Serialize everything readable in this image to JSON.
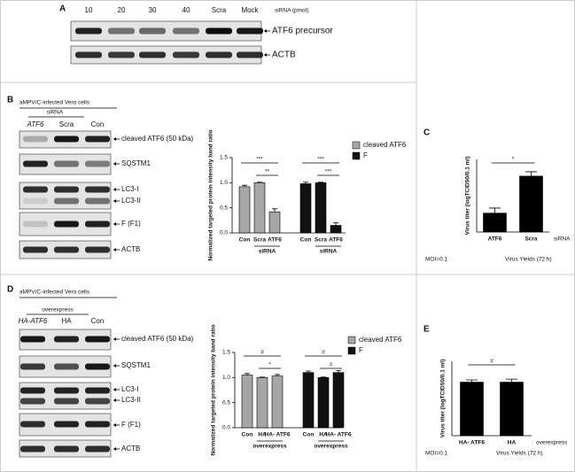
{
  "panel_a": {
    "label": "A",
    "lanes": [
      "10",
      "20",
      "30",
      "40",
      "Scra",
      "Mock"
    ],
    "lane_title": "siRNA (pmol)",
    "bands": [
      "ATF6 precursor",
      "ACTB"
    ]
  },
  "panel_b": {
    "label": "B",
    "cells": "aMPV/C-infected Vero cells",
    "treatment": "siRNA",
    "lanes": [
      "ATF6",
      "Scra",
      "Con"
    ],
    "bands": [
      "cleaved ATF6 (50 kDa)",
      "SQSTM1",
      "LC3-I",
      "LC3-II",
      "F (F1)",
      "ACTB"
    ]
  },
  "panel_d": {
    "label": "D",
    "cells": "aMPV/C-infected Vero cells",
    "treatment": "overexpress",
    "lanes": [
      "HA-ATF6",
      "HA",
      "Con"
    ],
    "bands": [
      "cleaved ATF6 (50 kDa)",
      "SQSTM1",
      "LC3-I",
      "LC3-II",
      "F (F1)",
      "ACTB"
    ]
  },
  "chart_data": [
    {
      "type": "bar",
      "categories": [
        "Con",
        "Scra",
        "ATF6"
      ],
      "group_label": "siRNA",
      "series": [
        {
          "name": "cleaved ATF6",
          "color": "#a6a6a6",
          "values": [
            0.92,
            1.0,
            0.42
          ],
          "errors": [
            0.03,
            0.01,
            0.06
          ]
        },
        {
          "name": "F",
          "color": "#111111",
          "values": [
            0.98,
            1.0,
            0.15
          ],
          "errors": [
            0.03,
            0.01,
            0.05
          ]
        }
      ],
      "y_label": "Normalized targeted protein intensity band ratio",
      "ylim": [
        0,
        1.5
      ],
      "yticks": [
        {
          "value": 0,
          "label": "0.0"
        },
        0.5,
        {
          "value": 1,
          "label": "1.0"
        },
        1.5
      ],
      "annotations": [
        "***",
        "**",
        "***",
        "***"
      ]
    },
    {
      "type": "bar",
      "panel": "C",
      "categories": [
        "ATF6",
        "Scra"
      ],
      "values": [
        1.3,
        3.85
      ],
      "errors": [
        0.35,
        0.3
      ],
      "color": "#000000",
      "x_title": "siRNA",
      "y_label": "Virus titer (logTCID50/0.1 ml)",
      "ylim": [
        0,
        5
      ],
      "annotations": [
        "*"
      ],
      "notes": [
        "MOI=0.1",
        "Virus Yields (72 h)"
      ]
    },
    {
      "type": "bar",
      "categories": [
        "Con",
        "HA",
        "HA- ATF6"
      ],
      "group_label": "overexpress",
      "series": [
        {
          "name": "cleaved ATF6",
          "color": "#a6a6a6",
          "values": [
            1.05,
            1.0,
            1.03
          ],
          "errors": [
            0.03,
            0.01,
            0.03
          ]
        },
        {
          "name": "F",
          "color": "#111111",
          "values": [
            1.1,
            1.0,
            1.1
          ],
          "errors": [
            0.03,
            0.01,
            0.04
          ]
        }
      ],
      "y_label": "Normalized targeted protein intensity band ratio",
      "ylim": [
        0,
        1.5
      ],
      "yticks": [
        {
          "value": 0,
          "label": "0.0"
        },
        0.5,
        {
          "value": 1,
          "label": "1.0"
        },
        1.5
      ],
      "annotations": [
        "#",
        "*",
        "#",
        "#"
      ]
    },
    {
      "type": "bar",
      "panel": "E",
      "categories": [
        "HA- ATF6",
        "HA"
      ],
      "values": [
        3.6,
        3.6
      ],
      "errors": [
        0.15,
        0.2
      ],
      "color": "#000000",
      "x_title": "overexpress",
      "y_label": "Virus titer (logTCID50/0.1 ml)",
      "ylim": [
        0,
        5
      ],
      "annotations": [
        "#"
      ],
      "notes": [
        "MOI=0.1",
        "Virus Yields (72 h)"
      ]
    }
  ]
}
